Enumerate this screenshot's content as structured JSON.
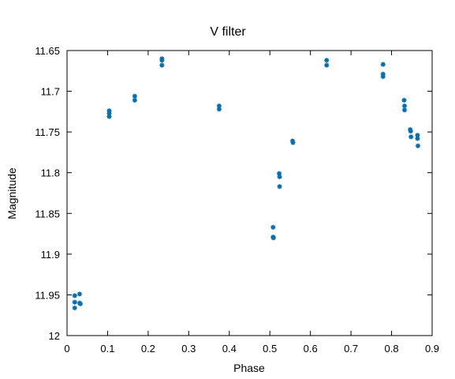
{
  "chart_data": {
    "type": "scatter",
    "title": "V filter",
    "xlabel": "Phase",
    "ylabel": "Magnitude",
    "xlim": [
      0,
      0.9
    ],
    "ylim": [
      12,
      11.65
    ],
    "y_inverted": true,
    "grid": false,
    "marker_color": "#0a6fad",
    "xticks": [
      {
        "value": 0,
        "label": "0"
      },
      {
        "value": 0.1,
        "label": "0.1"
      },
      {
        "value": 0.2,
        "label": "0.2"
      },
      {
        "value": 0.3,
        "label": "0.3"
      },
      {
        "value": 0.4,
        "label": "0.4"
      },
      {
        "value": 0.5,
        "label": "0.5"
      },
      {
        "value": 0.6,
        "label": "0.6"
      },
      {
        "value": 0.7,
        "label": "0.7"
      },
      {
        "value": 0.8,
        "label": "0.8"
      },
      {
        "value": 0.9,
        "label": "0.9"
      }
    ],
    "yticks": [
      {
        "value": 11.65,
        "label": "11.65"
      },
      {
        "value": 11.7,
        "label": "11.7"
      },
      {
        "value": 11.75,
        "label": "11.75"
      },
      {
        "value": 11.8,
        "label": "11.8"
      },
      {
        "value": 11.85,
        "label": "11.85"
      },
      {
        "value": 11.9,
        "label": "11.9"
      },
      {
        "value": 11.95,
        "label": "11.95"
      },
      {
        "value": 12,
        "label": "12"
      }
    ],
    "series": [
      {
        "points": [
          [
            0.019,
            11.951
          ],
          [
            0.019,
            11.959
          ],
          [
            0.019,
            11.966
          ],
          [
            0.031,
            11.949
          ],
          [
            0.031,
            11.96
          ],
          [
            0.033,
            11.961
          ],
          [
            0.104,
            11.724
          ],
          [
            0.104,
            11.727
          ],
          [
            0.104,
            11.731
          ],
          [
            0.167,
            11.706
          ],
          [
            0.167,
            11.711
          ],
          [
            0.234,
            11.66
          ],
          [
            0.234,
            11.662
          ],
          [
            0.234,
            11.668
          ],
          [
            0.375,
            11.718
          ],
          [
            0.375,
            11.722
          ],
          [
            0.508,
            11.867
          ],
          [
            0.508,
            11.879
          ],
          [
            0.509,
            11.88
          ],
          [
            0.523,
            11.801
          ],
          [
            0.524,
            11.805
          ],
          [
            0.524,
            11.817
          ],
          [
            0.556,
            11.761
          ],
          [
            0.557,
            11.763
          ],
          [
            0.64,
            11.662
          ],
          [
            0.64,
            11.668
          ],
          [
            0.779,
            11.667
          ],
          [
            0.779,
            11.679
          ],
          [
            0.779,
            11.682
          ],
          [
            0.831,
            11.711
          ],
          [
            0.832,
            11.718
          ],
          [
            0.832,
            11.723
          ],
          [
            0.846,
            11.747
          ],
          [
            0.847,
            11.749
          ],
          [
            0.848,
            11.756
          ],
          [
            0.864,
            11.754
          ],
          [
            0.864,
            11.758
          ],
          [
            0.865,
            11.767
          ]
        ]
      }
    ]
  }
}
